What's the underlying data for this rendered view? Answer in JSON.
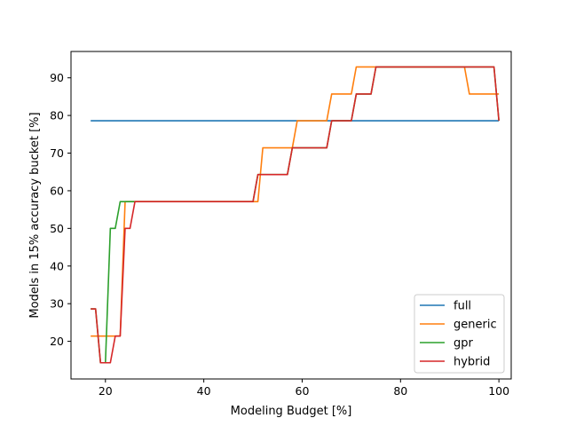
{
  "chart_data": {
    "type": "line",
    "title": "",
    "xlabel": "Modeling Budget [%]",
    "ylabel": "Models in 15% accuracy bucket [%]",
    "xlim": [
      13,
      102.5
    ],
    "ylim": [
      10,
      97
    ],
    "xticks": [
      20,
      40,
      60,
      80,
      100
    ],
    "yticks": [
      20,
      30,
      40,
      50,
      60,
      70,
      80,
      90
    ],
    "legend_position": "lower-right",
    "series": [
      {
        "name": "full",
        "color": "#1f77b4",
        "x": [
          17,
          100
        ],
        "y": [
          78.6,
          78.6
        ]
      },
      {
        "name": "generic",
        "color": "#ff7f0e",
        "x": [
          17,
          23,
          24,
          51,
          52,
          58,
          59,
          65,
          66,
          70,
          71,
          93,
          94,
          100
        ],
        "y": [
          21.4,
          21.4,
          57.1,
          57.1,
          71.4,
          71.4,
          78.6,
          78.6,
          85.7,
          85.7,
          92.9,
          92.9,
          85.7,
          85.7
        ]
      },
      {
        "name": "gpr",
        "color": "#2ca02c",
        "x": [
          17,
          18,
          19,
          20,
          21,
          22,
          23,
          24,
          26,
          50,
          51,
          57,
          58,
          65,
          66,
          70,
          71,
          74,
          75,
          99,
          100
        ],
        "y": [
          28.6,
          28.6,
          14.3,
          14.3,
          50,
          50,
          57.1,
          57.1,
          57.1,
          57.1,
          64.3,
          64.3,
          71.4,
          71.4,
          78.6,
          78.6,
          85.7,
          85.7,
          92.9,
          92.9,
          78.6
        ]
      },
      {
        "name": "hybrid",
        "color": "#d62728",
        "x": [
          17,
          18,
          19,
          21,
          22,
          23,
          24,
          25,
          26,
          50,
          51,
          57,
          58,
          65,
          66,
          70,
          71,
          74,
          75,
          99,
          100
        ],
        "y": [
          28.6,
          28.6,
          14.3,
          14.3,
          21.4,
          21.4,
          50,
          50,
          57.1,
          57.1,
          64.3,
          64.3,
          71.4,
          71.4,
          78.6,
          78.6,
          85.7,
          85.7,
          92.9,
          92.9,
          78.6
        ]
      }
    ]
  }
}
